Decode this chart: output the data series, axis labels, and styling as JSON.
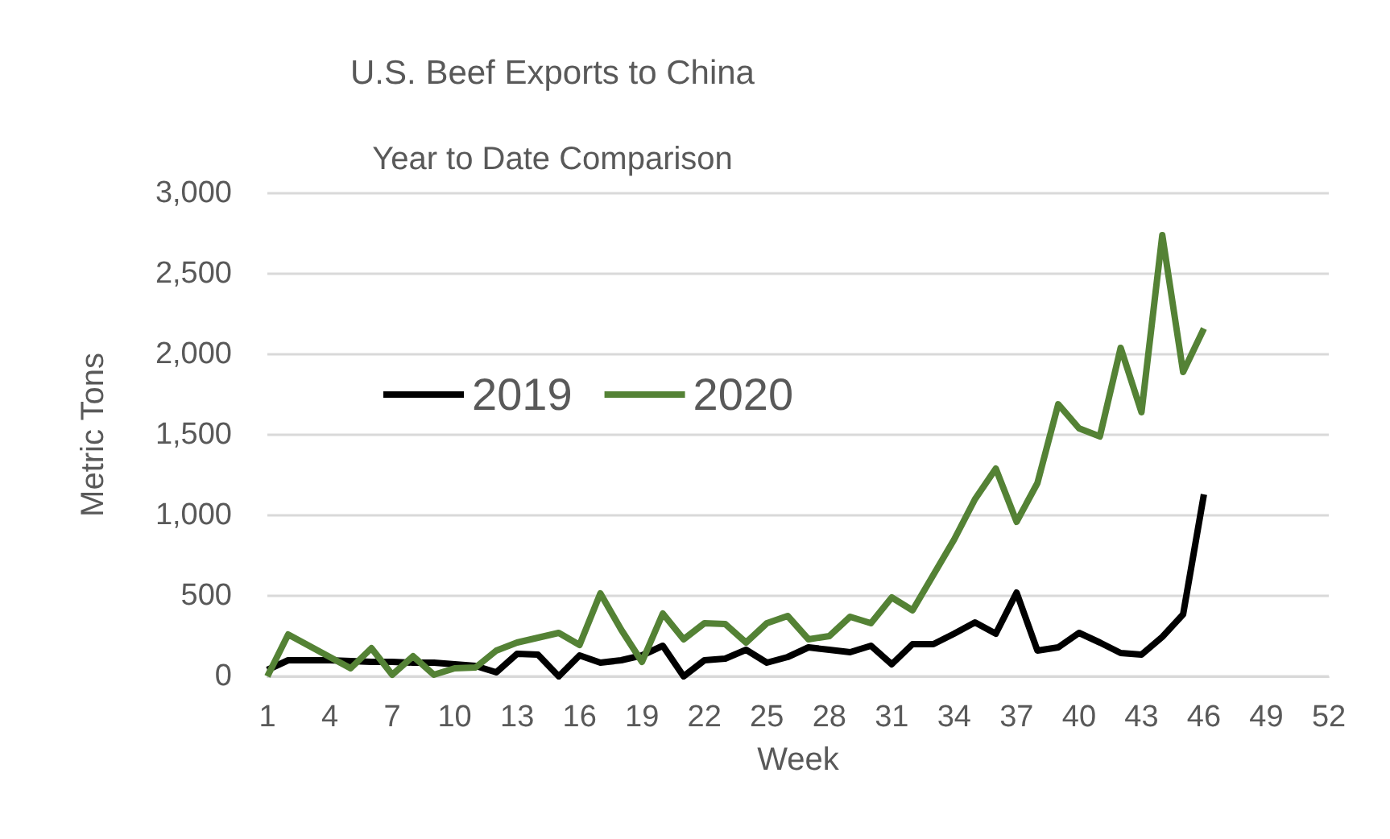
{
  "chart_data": {
    "type": "line",
    "title": "U.S. Beef Exports to China",
    "subtitle": "Year to Date Comparison",
    "xlabel": "Week",
    "ylabel": "Metric Tons",
    "x": [
      1,
      2,
      3,
      4,
      5,
      6,
      7,
      8,
      9,
      10,
      11,
      12,
      13,
      14,
      15,
      16,
      17,
      18,
      19,
      20,
      21,
      22,
      23,
      24,
      25,
      26,
      27,
      28,
      29,
      30,
      31,
      32,
      33,
      34,
      35,
      36,
      37,
      38,
      39,
      40,
      41,
      42,
      43,
      44,
      45,
      46
    ],
    "series": [
      {
        "name": "2019",
        "color": "#000000",
        "values": [
          40,
          100,
          100,
          100,
          95,
          90,
          90,
          85,
          85,
          75,
          65,
          25,
          140,
          135,
          0,
          130,
          85,
          100,
          130,
          190,
          0,
          100,
          110,
          165,
          85,
          120,
          180,
          165,
          150,
          190,
          75,
          200,
          200,
          265,
          335,
          265,
          520,
          160,
          180,
          270,
          210,
          145,
          135,
          245,
          385,
          1130
        ]
      },
      {
        "name": "2020",
        "color": "#548235",
        "values": [
          0,
          260,
          190,
          120,
          50,
          175,
          10,
          125,
          10,
          50,
          55,
          160,
          210,
          240,
          270,
          195,
          515,
          290,
          90,
          390,
          230,
          330,
          325,
          210,
          330,
          375,
          230,
          250,
          370,
          330,
          490,
          410,
          630,
          850,
          1100,
          1290,
          960,
          1200,
          1690,
          1540,
          1490,
          2040,
          1640,
          2740,
          1890,
          2160
        ]
      }
    ],
    "xlim": [
      1,
      52
    ],
    "xticks": [
      1,
      4,
      7,
      10,
      13,
      16,
      19,
      22,
      25,
      28,
      31,
      34,
      37,
      40,
      43,
      46,
      49,
      52
    ],
    "ylim": [
      0,
      3000
    ],
    "yticks": [
      0,
      500,
      {
        "value": 1000,
        "label": "1,000"
      },
      {
        "value": 1500,
        "label": "1,500"
      },
      {
        "value": 2000,
        "label": "2,000"
      },
      {
        "value": 2500,
        "label": "2,500"
      },
      {
        "value": 3000,
        "label": "3,000"
      }
    ],
    "grid": "y",
    "legend": "top left",
    "marker": "none",
    "line_style": "solid"
  }
}
